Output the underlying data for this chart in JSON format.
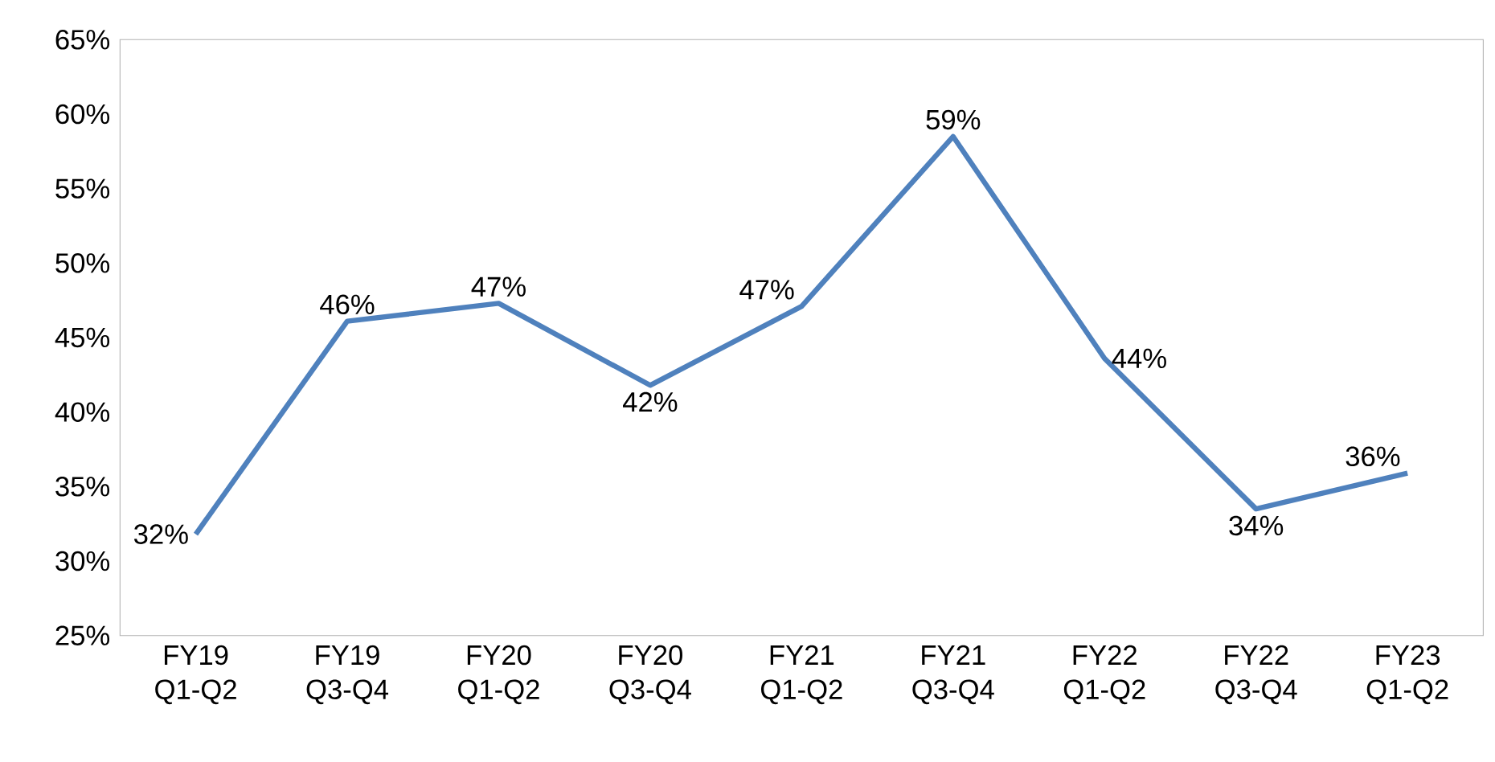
{
  "chart_data": {
    "type": "line",
    "categories": [
      "FY19 Q1-Q2",
      "FY19 Q3-Q4",
      "FY20 Q1-Q2",
      "FY20 Q3-Q4",
      "FY21 Q1-Q2",
      "FY21 Q3-Q4",
      "FY22 Q1-Q2",
      "FY22 Q3-Q4",
      "FY23 Q1-Q2"
    ],
    "series": [
      {
        "color": "#4f81bd",
        "values": [
          31.8,
          46.1,
          47.3,
          41.8,
          47.1,
          58.5,
          43.6,
          33.5,
          35.9
        ],
        "value_labels": [
          "32%",
          "46%",
          "47%",
          "42%",
          "47%",
          "59%",
          "44%",
          "34%",
          "36%"
        ]
      }
    ],
    "ylim": [
      25,
      65
    ],
    "yticks": [
      {
        "value": 25,
        "label": "25%"
      },
      {
        "value": 30,
        "label": "30%"
      },
      {
        "value": 35,
        "label": "35%"
      },
      {
        "value": 40,
        "label": "40%"
      },
      {
        "value": 45,
        "label": "45%"
      },
      {
        "value": 50,
        "label": "50%"
      },
      {
        "value": 55,
        "label": "55%"
      },
      {
        "value": 60,
        "label": "60%"
      },
      {
        "value": 65,
        "label": "65%"
      }
    ],
    "marker": "none",
    "line_style": "solid"
  }
}
